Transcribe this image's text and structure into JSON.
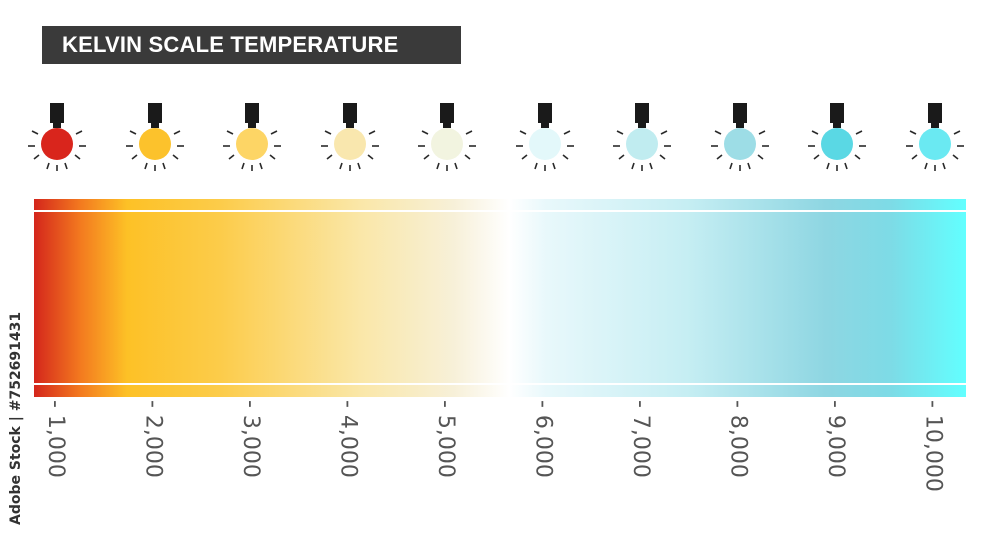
{
  "title": "KELVIN SCALE TEMPERATURE",
  "stock_id": "Adobe Stock | #752691431",
  "accent_colors": {
    "title_bg": "#3a3a3a",
    "gradient": [
      "#d4261c",
      "#fdc126",
      "#fae7a8",
      "#ffffff",
      "#c6eef3",
      "#62ffff"
    ]
  },
  "scale": [
    {
      "label": "1,000",
      "bulb_color": "#d9251c"
    },
    {
      "label": "2,000",
      "bulb_color": "#fcc22c"
    },
    {
      "label": "3,000",
      "bulb_color": "#fdd565"
    },
    {
      "label": "4,000",
      "bulb_color": "#f9e7ae"
    },
    {
      "label": "5,000",
      "bulb_color": "#f2f4e0"
    },
    {
      "label": "6,000",
      "bulb_color": "#e3f8fa"
    },
    {
      "label": "7,000",
      "bulb_color": "#c0ecf0"
    },
    {
      "label": "8,000",
      "bulb_color": "#9ddde6"
    },
    {
      "label": "9,000",
      "bulb_color": "#5ad8e4"
    },
    {
      "label": "10,000",
      "bulb_color": "#6ae9f2"
    }
  ]
}
